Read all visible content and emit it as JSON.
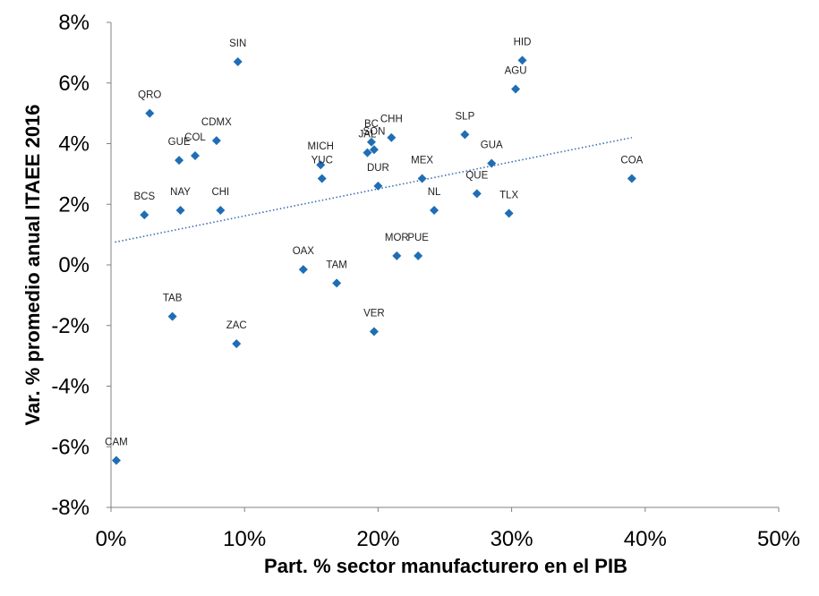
{
  "chart_data": {
    "type": "scatter",
    "title": "",
    "xlabel": "Part. % sector manufacturero en el PIB",
    "ylabel": "Var. % promedio anual ITAEE 2016",
    "xlim": [
      0,
      50
    ],
    "ylim": [
      -8,
      8
    ],
    "x_ticks": [
      0,
      10,
      20,
      30,
      40,
      50
    ],
    "y_ticks": [
      -8,
      -6,
      -4,
      -2,
      0,
      2,
      4,
      6,
      8
    ],
    "x_tick_labels": [
      "0%",
      "10%",
      "20%",
      "30%",
      "40%",
      "50%"
    ],
    "y_tick_labels": [
      "-8%",
      "-6%",
      "-4%",
      "-2%",
      "0%",
      "2%",
      "4%",
      "6%",
      "8%"
    ],
    "grid": false,
    "legend": "none",
    "marker": "diamond",
    "marker_color": "#1f6eb5",
    "trendline": {
      "type": "linear",
      "style": "dotted",
      "color": "#3b6fb0",
      "x": [
        0.3,
        39
      ],
      "y": [
        0.75,
        4.2
      ]
    },
    "points": [
      {
        "label": "SIN",
        "x": 9.5,
        "y": 6.7
      },
      {
        "label": "HID",
        "x": 30.8,
        "y": 6.75
      },
      {
        "label": "AGU",
        "x": 30.3,
        "y": 5.8
      },
      {
        "label": "QRO",
        "x": 2.9,
        "y": 5.0
      },
      {
        "label": "CDMX",
        "x": 7.9,
        "y": 4.1
      },
      {
        "label": "COL",
        "x": 6.3,
        "y": 3.6
      },
      {
        "label": "GUE",
        "x": 5.1,
        "y": 3.45
      },
      {
        "label": "CHH",
        "x": 21.0,
        "y": 4.2
      },
      {
        "label": "BC",
        "x": 19.5,
        "y": 4.05
      },
      {
        "label": "SON",
        "x": 19.7,
        "y": 3.8
      },
      {
        "label": "JAL",
        "x": 19.2,
        "y": 3.7
      },
      {
        "label": "SLP",
        "x": 26.5,
        "y": 4.3
      },
      {
        "label": "MICH",
        "x": 15.7,
        "y": 3.3
      },
      {
        "label": "YUC",
        "x": 15.8,
        "y": 2.85
      },
      {
        "label": "GUA",
        "x": 28.5,
        "y": 3.35
      },
      {
        "label": "DUR",
        "x": 20.0,
        "y": 2.6
      },
      {
        "label": "MEX",
        "x": 23.3,
        "y": 2.85
      },
      {
        "label": "QUE",
        "x": 27.4,
        "y": 2.35
      },
      {
        "label": "COA",
        "x": 39.0,
        "y": 2.85
      },
      {
        "label": "BCS",
        "x": 2.5,
        "y": 1.65
      },
      {
        "label": "NAY",
        "x": 5.2,
        "y": 1.8
      },
      {
        "label": "CHI",
        "x": 8.2,
        "y": 1.8
      },
      {
        "label": "NL",
        "x": 24.2,
        "y": 1.8
      },
      {
        "label": "TLX",
        "x": 29.8,
        "y": 1.7
      },
      {
        "label": "MOR",
        "x": 21.4,
        "y": 0.3
      },
      {
        "label": "PUE",
        "x": 23.0,
        "y": 0.3
      },
      {
        "label": "OAX",
        "x": 14.4,
        "y": -0.15
      },
      {
        "label": "TAM",
        "x": 16.9,
        "y": -0.6
      },
      {
        "label": "TAB",
        "x": 4.6,
        "y": -1.7
      },
      {
        "label": "VER",
        "x": 19.7,
        "y": -2.2
      },
      {
        "label": "ZAC",
        "x": 9.4,
        "y": -2.6
      },
      {
        "label": "CAM",
        "x": 0.4,
        "y": -6.45
      }
    ]
  }
}
